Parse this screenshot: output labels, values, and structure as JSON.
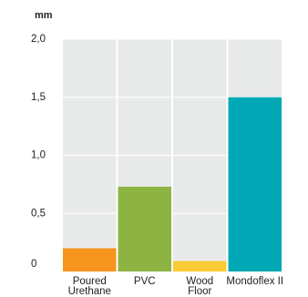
{
  "chart_data": {
    "type": "bar",
    "y_label": "mm",
    "categories": [
      "Poured Urethane",
      "PVC",
      "Wood Floor",
      "Mondoflex II"
    ],
    "values": [
      0.2,
      0.73,
      0.09,
      1.5
    ],
    "colors": [
      "#f7941d",
      "#8db443",
      "#f9cb35",
      "#00a9b5"
    ],
    "ylim": [
      0,
      2
    ],
    "yticks": [
      0,
      {
        "value": 0.5,
        "label": "0,5"
      },
      {
        "value": 1,
        "label": "1,0"
      },
      {
        "value": 1.5,
        "label": "1,5"
      },
      {
        "value": 2,
        "label": "2,0"
      }
    ],
    "grid": true
  }
}
